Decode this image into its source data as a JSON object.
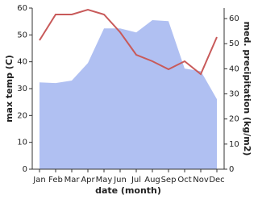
{
  "chart_data": {
    "type": "line-area",
    "xlabel": "date (month)",
    "ylabel": "max temp (C)",
    "y2label": "med. precipitation (kg/m2)",
    "categories": [
      "Jan",
      "Feb",
      "Mar",
      "Apr",
      "May",
      "Jun",
      "Jul",
      "Aug",
      "Sep",
      "Oct",
      "Nov",
      "Dec"
    ],
    "series": [
      {
        "name": "med. precipitation",
        "kind": "area",
        "axis": "y2",
        "color": "#b0c0f2",
        "values": [
          34.6,
          34.3,
          35.3,
          42.3,
          56.1,
          56.1,
          54.5,
          59.4,
          59,
          40.1,
          39.1,
          27.9
        ]
      },
      {
        "name": "max temp",
        "kind": "line",
        "axis": "y",
        "color": "#c85a5a",
        "values": [
          48,
          57.6,
          57.6,
          59.4,
          57.6,
          51,
          42.6,
          40.2,
          37.2,
          40.2,
          35.4,
          49.2
        ]
      }
    ],
    "ylim": [
      0,
      60
    ],
    "yticks": [
      0,
      10,
      20,
      30,
      40,
      50,
      60
    ],
    "y2lim": [
      0,
      64.2
    ],
    "y2ticks": [
      0,
      10,
      20,
      30,
      40,
      50,
      60
    ]
  }
}
